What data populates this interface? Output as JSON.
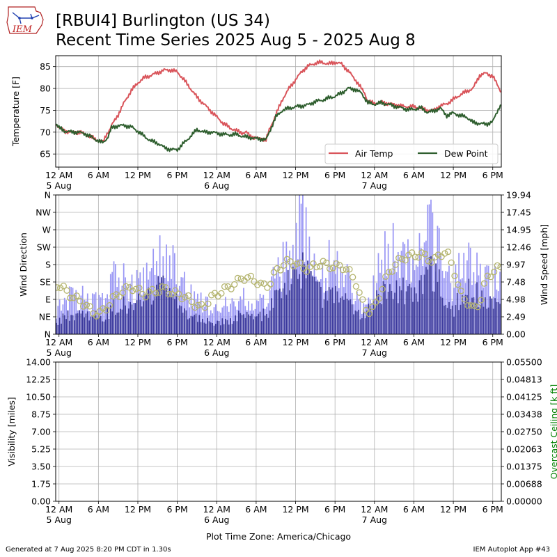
{
  "header": {
    "title_line1": "[RBUI4] Burlington (US 34)",
    "title_line2": "Recent Time Series 2025 Aug 5 - 2025 Aug 8",
    "logo_text": "IEM"
  },
  "footer": {
    "generated": "Generated at 7 Aug 2025 8:20 PM CDT in 1.30s",
    "app": "IEM Autoplot App #43",
    "timezone": "Plot Time Zone: America/Chicago"
  },
  "colors": {
    "air_temp": "#d9545a",
    "dew_point": "#2e5e2e",
    "wind_gust": "#9b98f5",
    "wind_speed": "#3a389c",
    "wind_dir": "#b4b46e",
    "ceiling_axis": "#008000",
    "grid": "#b0b0b0"
  },
  "chart_data": [
    {
      "type": "line",
      "ylabel": "Temperature [F]",
      "ylim": [
        62,
        87.5
      ],
      "yticks": [
        65,
        70,
        75,
        80,
        85
      ],
      "xlim_hours": [
        -0.5,
        67.3
      ],
      "x_unit": "hours since 5 Aug 2025 00:00 CDT",
      "xticks": [
        {
          "hour": 0,
          "label": "12 AM",
          "date": "5 Aug"
        },
        {
          "hour": 6,
          "label": "6 AM",
          "date": ""
        },
        {
          "hour": 12,
          "label": "12 PM",
          "date": ""
        },
        {
          "hour": 18,
          "label": "6 PM",
          "date": ""
        },
        {
          "hour": 24,
          "label": "12 AM",
          "date": "6 Aug"
        },
        {
          "hour": 30,
          "label": "6 AM",
          "date": ""
        },
        {
          "hour": 36,
          "label": "12 PM",
          "date": ""
        },
        {
          "hour": 42,
          "label": "6 PM",
          "date": ""
        },
        {
          "hour": 48,
          "label": "12 AM",
          "date": "7 Aug"
        },
        {
          "hour": 54,
          "label": "6 AM",
          "date": ""
        },
        {
          "hour": 60,
          "label": "12 PM",
          "date": ""
        },
        {
          "hour": 66,
          "label": "6 PM",
          "date": ""
        }
      ],
      "grid": true,
      "legend_position": "lower-right",
      "series": [
        {
          "name": "Air Temp",
          "color": "#d9545a",
          "points": [
            [
              -0.5,
              72
            ],
            [
              0,
              71
            ],
            [
              1,
              70.2
            ],
            [
              2,
              70
            ],
            [
              3,
              70
            ],
            [
              4,
              69.6
            ],
            [
              5,
              68.8
            ],
            [
              6,
              68
            ],
            [
              6.7,
              67.9
            ],
            [
              7.3,
              69.5
            ],
            [
              8,
              71.5
            ],
            [
              9,
              74
            ],
            [
              10,
              77
            ],
            [
              11,
              79.5
            ],
            [
              12,
              81.3
            ],
            [
              13,
              82.5
            ],
            [
              14,
              83
            ],
            [
              15,
              83.6
            ],
            [
              16,
              84.2
            ],
            [
              17,
              84.2
            ],
            [
              18,
              83.8
            ],
            [
              19,
              82
            ],
            [
              20,
              80
            ],
            [
              21,
              78
            ],
            [
              22,
              76.5
            ],
            [
              23,
              75
            ],
            [
              24,
              73.5
            ],
            [
              25,
              72
            ],
            [
              26,
              71
            ],
            [
              27,
              70.3
            ],
            [
              28,
              69.8
            ],
            [
              28.5,
              70
            ],
            [
              29,
              69.2
            ],
            [
              30,
              68.6
            ],
            [
              31,
              68.5
            ],
            [
              31.5,
              68.2
            ],
            [
              32,
              70.5
            ],
            [
              33,
              74
            ],
            [
              34,
              77.5
            ],
            [
              35,
              80
            ],
            [
              36,
              82
            ],
            [
              37,
              84
            ],
            [
              38,
              85.2
            ],
            [
              39,
              85.8
            ],
            [
              40,
              86
            ],
            [
              41,
              85.6
            ],
            [
              42,
              86
            ],
            [
              43,
              85.6
            ],
            [
              44,
              84
            ],
            [
              45,
              82.2
            ],
            [
              46,
              80
            ],
            [
              46.5,
              79
            ],
            [
              47,
              77
            ],
            [
              48,
              76.6
            ],
            [
              49,
              76.8
            ],
            [
              50,
              76.6
            ],
            [
              51,
              76.3
            ],
            [
              52,
              76
            ],
            [
              53,
              75.8
            ],
            [
              54,
              75.8
            ],
            [
              55,
              75.5
            ],
            [
              56,
              75
            ],
            [
              57,
              75
            ],
            [
              58,
              76
            ],
            [
              59,
              76.5
            ],
            [
              60,
              77.5
            ],
            [
              61,
              78.5
            ],
            [
              62,
              79.3
            ],
            [
              63,
              80
            ],
            [
              64,
              83
            ],
            [
              65,
              83.5
            ],
            [
              66,
              82.8
            ],
            [
              67,
              80
            ],
            [
              67.3,
              79.3
            ]
          ]
        },
        {
          "name": "Dew Point",
          "color": "#2e5e2e",
          "points": [
            [
              -0.5,
              72
            ],
            [
              0,
              71
            ],
            [
              1,
              70.2
            ],
            [
              2,
              70
            ],
            [
              3,
              70
            ],
            [
              4,
              69.6
            ],
            [
              5,
              68.8
            ],
            [
              6,
              68
            ],
            [
              6.8,
              67.5
            ],
            [
              7.3,
              68.5
            ],
            [
              8,
              71
            ],
            [
              9,
              71.5
            ],
            [
              10,
              71.5
            ],
            [
              11,
              71.2
            ],
            [
              12,
              70.2
            ],
            [
              13,
              69
            ],
            [
              14,
              68
            ],
            [
              15,
              67.5
            ],
            [
              16,
              66.5
            ],
            [
              17,
              66
            ],
            [
              18,
              66
            ],
            [
              19,
              67.5
            ],
            [
              20,
              69
            ],
            [
              21,
              70.6
            ],
            [
              22,
              70
            ],
            [
              23,
              70
            ],
            [
              24,
              69.8
            ],
            [
              25,
              69.5
            ],
            [
              26,
              69.4
            ],
            [
              27,
              69.5
            ],
            [
              28,
              69
            ],
            [
              29,
              68.8
            ],
            [
              30,
              68.5
            ],
            [
              31,
              68.4
            ],
            [
              31.5,
              68.2
            ],
            [
              32,
              70
            ],
            [
              33,
              73.5
            ],
            [
              34,
              75
            ],
            [
              35,
              75.5
            ],
            [
              36,
              75.8
            ],
            [
              37,
              76
            ],
            [
              38,
              76.3
            ],
            [
              39,
              77
            ],
            [
              40,
              77.3
            ],
            [
              41,
              77.8
            ],
            [
              42,
              78.2
            ],
            [
              43,
              79
            ],
            [
              44,
              80
            ],
            [
              45,
              79.8
            ],
            [
              46,
              79
            ],
            [
              47,
              76.7
            ],
            [
              48,
              76.4
            ],
            [
              49,
              76.7
            ],
            [
              50,
              76.4
            ],
            [
              51,
              76
            ],
            [
              52,
              75.6
            ],
            [
              53,
              75.2
            ],
            [
              54,
              75.2
            ],
            [
              55,
              75.6
            ],
            [
              56,
              74.6
            ],
            [
              57,
              74.8
            ],
            [
              58,
              75.5
            ],
            [
              59,
              73.8
            ],
            [
              60,
              74.4
            ],
            [
              61,
              73.8
            ],
            [
              62,
              73.5
            ],
            [
              63,
              72.2
            ],
            [
              64,
              72
            ],
            [
              65,
              71.8
            ],
            [
              66,
              72.4
            ],
            [
              67,
              75.8
            ],
            [
              67.3,
              76.2
            ]
          ]
        }
      ]
    },
    {
      "type": "bar",
      "ylabel": "Wind Direction",
      "y2label": "Wind Speed [mph]",
      "direction_ticks": [
        "N",
        "NE",
        "E",
        "SE",
        "S",
        "SW",
        "W",
        "NW",
        "N"
      ],
      "speed_ticks": [
        "0.00",
        "2.49",
        "4.98",
        "7.48",
        "9.97",
        "12.46",
        "14.95",
        "17.45",
        "19.94"
      ],
      "speed_ylim": [
        0,
        19.94
      ],
      "grid": true,
      "series": [
        {
          "name": "Wind Gust",
          "color": "#9b98f5",
          "hour_values": [
            4,
            5,
            6,
            5,
            6,
            5,
            5,
            5,
            8,
            9,
            8,
            7,
            8,
            9,
            10,
            12,
            13,
            12,
            10,
            8,
            6,
            5,
            5,
            4,
            4,
            5,
            5,
            5,
            6,
            6,
            5,
            5,
            7,
            9,
            11,
            13,
            16,
            18,
            16,
            13,
            10,
            11,
            12,
            11,
            9,
            7,
            5,
            6,
            8,
            11,
            13,
            13,
            12,
            11,
            10,
            12,
            15,
            17,
            13,
            9,
            7,
            10,
            12,
            11,
            10,
            9,
            8,
            9
          ]
        },
        {
          "name": "Wind Speed",
          "color": "#3a389c",
          "hour_values": [
            2,
            3,
            3,
            3,
            3,
            3,
            3,
            3,
            4,
            5,
            5,
            4,
            5,
            5,
            6,
            7,
            7,
            6,
            5,
            4,
            3,
            3,
            2,
            2,
            2,
            2,
            2,
            3,
            3,
            3,
            3,
            3,
            4,
            6,
            7,
            8,
            9,
            10,
            9,
            7,
            6,
            6,
            7,
            6,
            5,
            4,
            3,
            4,
            5,
            6,
            7,
            8,
            7,
            7,
            6,
            7,
            9,
            10,
            8,
            5,
            4,
            6,
            7,
            7,
            6,
            5,
            5,
            5
          ]
        },
        {
          "name": "Wind Direction",
          "color": "#b4b46e",
          "unit": "degrees",
          "hour_values": [
            115,
            100,
            85,
            75,
            65,
            45,
            40,
            50,
            75,
            90,
            100,
            110,
            100,
            90,
            95,
            100,
            105,
            95,
            90,
            85,
            75,
            60,
            55,
            80,
            90,
            100,
            110,
            120,
            135,
            130,
            125,
            110,
            115,
            150,
            165,
            175,
            170,
            160,
            155,
            165,
            170,
            165,
            160,
            165,
            150,
            130,
            75,
            45,
            55,
            100,
            140,
            165,
            180,
            190,
            190,
            195,
            185,
            175,
            195,
            200,
            160,
            95,
            75,
            50,
            70,
            130,
            150,
            160
          ]
        }
      ]
    },
    {
      "type": "line",
      "ylabel": "Visibility [miles]",
      "y2label": "Overcast Ceiling [k ft]",
      "ylim": [
        0,
        14
      ],
      "yticks": [
        "0.00",
        "1.75",
        "3.50",
        "5.25",
        "7.00",
        "8.75",
        "10.50",
        "12.25",
        "14.00"
      ],
      "y2lim": [
        0,
        0.055
      ],
      "y2ticks": [
        "0.00000",
        "0.00688",
        "0.01375",
        "0.02063",
        "0.02750",
        "0.03438",
        "0.04125",
        "0.04813",
        "0.05500"
      ],
      "grid": true,
      "series": []
    }
  ]
}
